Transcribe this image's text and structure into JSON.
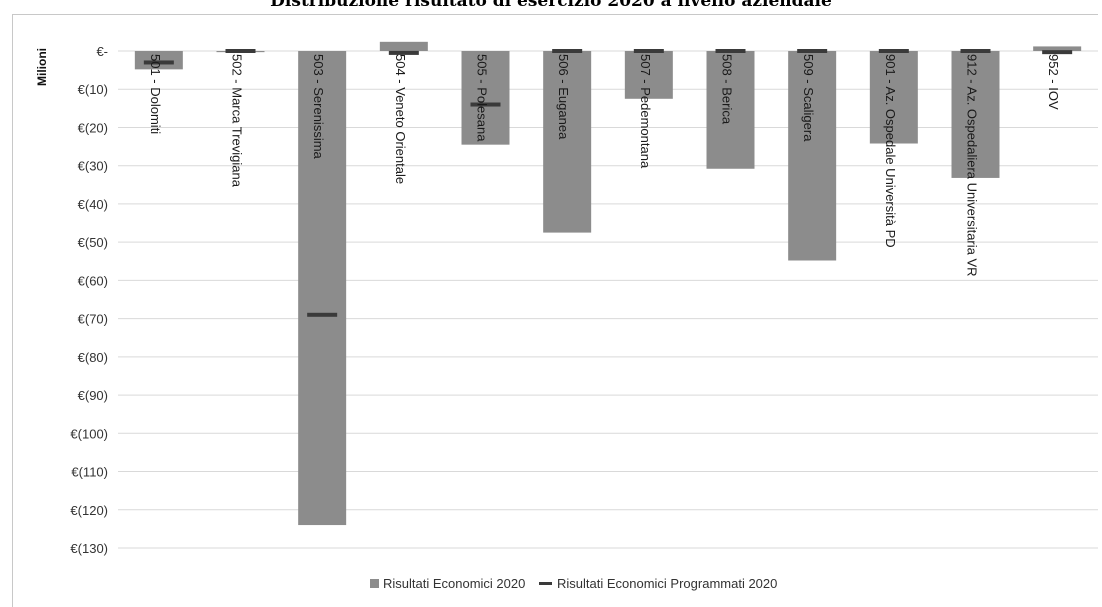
{
  "chart_data": {
    "type": "bar",
    "title": "Distribuzione risultato di esercizio 2020 a livello aziendale",
    "ylabel": "Milioni",
    "xlabel": "",
    "ylim": [
      -130,
      0
    ],
    "yticks": [
      0,
      -10,
      -20,
      -30,
      -40,
      -50,
      -60,
      -70,
      -80,
      -90,
      -100,
      -110,
      -120,
      -130
    ],
    "ytick_labels": [
      "€-",
      "€(10)",
      "€(20)",
      "€(30)",
      "€(40)",
      "€(50)",
      "€(60)",
      "€(70)",
      "€(80)",
      "€(90)",
      "€(100)",
      "€(110)",
      "€(120)",
      "€(130)"
    ],
    "grid": true,
    "legend_position": "bottom",
    "categories": [
      "501 - Dolomiti",
      "502 - Marca Trevigiana",
      "503 - Serenissima",
      "504 - Veneto Orientale",
      "505 - Polesana",
      "506 - Euganea",
      "507 - Pedemontana",
      "508 - Berica",
      "509 - Scaligera",
      "901 - Az. Ospedale Università PD",
      "912 - Az. Ospedaliera Universitaria VR",
      "952 - IOV"
    ],
    "series": [
      {
        "name": "Risultati Economici 2020",
        "color": "#8c8c8c",
        "values": [
          -4.8,
          -0.3,
          -124.0,
          2.4,
          -24.5,
          -47.5,
          -12.5,
          -30.8,
          -54.8,
          -24.2,
          -33.2,
          1.2
        ]
      },
      {
        "name": "Risultati Economici Programmati 2020",
        "color": "#3a3a3a",
        "values": [
          -3.0,
          0.0,
          -69.0,
          -0.5,
          -14.0,
          0.0,
          0.0,
          0.0,
          0.0,
          0.0,
          0.0,
          -0.3
        ]
      }
    ]
  }
}
